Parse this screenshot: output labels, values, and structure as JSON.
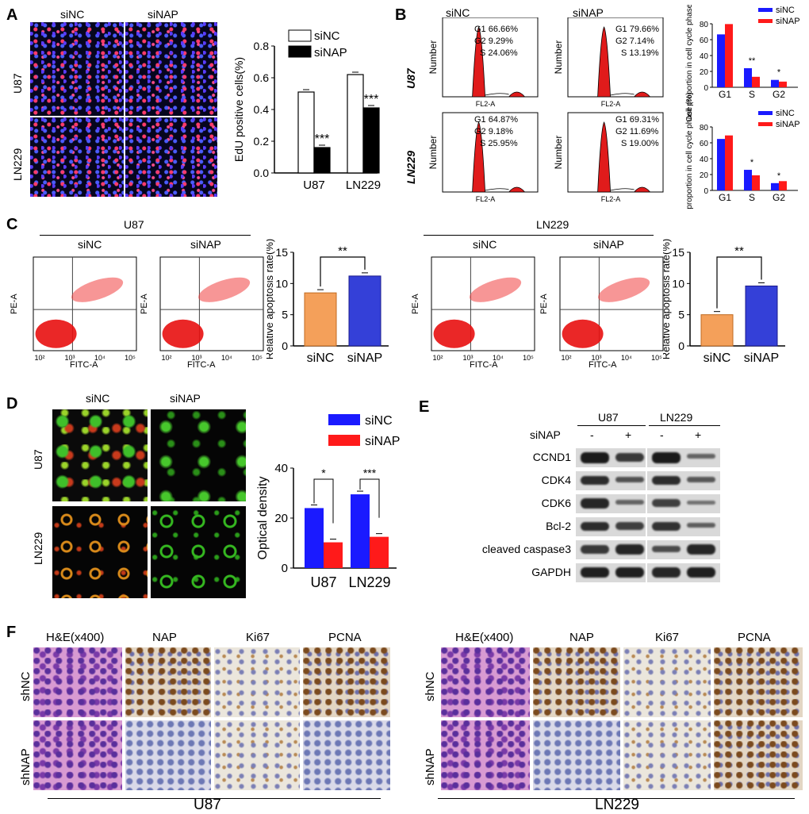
{
  "panels": {
    "a": "A",
    "b": "B",
    "c": "C",
    "d": "D",
    "e": "E",
    "f": "F"
  },
  "panelA": {
    "col_labels": [
      "siNC",
      "siNAP"
    ],
    "row_labels": [
      "U87",
      "LN229"
    ],
    "ylabel": "EdU positive cells(%)",
    "legend": [
      "siNC",
      "siNAP"
    ],
    "sig": [
      "***",
      "***"
    ]
  },
  "panelB": {
    "col_labels": [
      "siNC",
      "siNAP"
    ],
    "row_labels": [
      "U87",
      "LN229"
    ],
    "histo_ylabel": "Number",
    "histo_xlabel": "FL2-A",
    "stats": [
      {
        "G1": "G1  66.66%",
        "G2": "G2  9.29%",
        "S": "S  24.06%"
      },
      {
        "G1": "G1  79.66%",
        "G2": "G2  7.14%",
        "S": "S  13.19%"
      },
      {
        "G1": "G1  64.87%",
        "G2": "G2  9.18%",
        "S": "S  25.95%"
      },
      {
        "G1": "G1  69.31%",
        "G2": "G2  11.69%",
        "S": "S  19.00%"
      }
    ],
    "bar_ylabel": "Cell proportion in cell cycle phase (%)",
    "legend": [
      "siNC",
      "siNAP"
    ]
  },
  "panelC": {
    "groups": [
      "U87",
      "LN229"
    ],
    "col_labels": [
      "siNC",
      "siNAP"
    ],
    "flow_x": "FITC-A",
    "flow_y": "PE-A",
    "ylabel": "Relative apoptosis rate(%)",
    "sig": "**"
  },
  "panelD": {
    "col_labels": [
      "siNC",
      "siNAP"
    ],
    "row_labels": [
      "U87",
      "LN229"
    ],
    "ylabel": "Optical density",
    "legend": [
      "siNC",
      "siNAP"
    ],
    "sig": [
      "*",
      "***"
    ]
  },
  "panelE": {
    "groups": [
      "U87",
      "LN229"
    ],
    "treatment": "siNAP",
    "signs": [
      "-",
      "+",
      "-",
      "+"
    ],
    "proteins": [
      "CCND1",
      "CDK4",
      "CDK6",
      "Bcl-2",
      "cleaved caspase3",
      "GAPDH"
    ]
  },
  "panelF": {
    "col_labels": [
      "H&E(x400)",
      "NAP",
      "Ki67",
      "PCNA"
    ],
    "row_labels": [
      "shNC",
      "shNAP"
    ],
    "groups": [
      "U87",
      "LN229"
    ]
  },
  "chart_data": [
    {
      "type": "bar",
      "panel": "A",
      "categories": [
        "U87",
        "LN229"
      ],
      "series": [
        {
          "name": "siNC",
          "values": [
            0.51,
            0.62
          ]
        },
        {
          "name": "siNAP",
          "values": [
            0.16,
            0.41
          ]
        }
      ],
      "ylabel": "EdU positive cells(%)",
      "ylim": [
        0,
        0.8
      ],
      "yticks": [
        "0.0",
        "0.2",
        "0.4",
        "0.6",
        "0.8"
      ]
    },
    {
      "type": "bar",
      "panel": "B-U87",
      "categories": [
        "G1",
        "S",
        "G2"
      ],
      "series": [
        {
          "name": "siNC",
          "values": [
            66.66,
            24.06,
            9.29
          ]
        },
        {
          "name": "siNAP",
          "values": [
            79.66,
            13.19,
            7.14
          ]
        }
      ],
      "ylabel": "Cell proportion in cell cycle phase (%)",
      "ylim": [
        0,
        80
      ],
      "yticks": [
        "0",
        "20",
        "40",
        "60",
        "80"
      ],
      "sig": [
        "",
        "**",
        "*"
      ]
    },
    {
      "type": "bar",
      "panel": "B-LN229",
      "categories": [
        "G1",
        "S",
        "G2"
      ],
      "series": [
        {
          "name": "siNC",
          "values": [
            64.87,
            25.95,
            9.18
          ]
        },
        {
          "name": "siNAP",
          "values": [
            69.31,
            19.0,
            11.69
          ]
        }
      ],
      "ylabel": "Cell proportion in cell cycle phase (%)",
      "ylim": [
        0,
        80
      ],
      "yticks": [
        "0",
        "20",
        "40",
        "60",
        "80"
      ],
      "sig": [
        "",
        "*",
        "*"
      ]
    },
    {
      "type": "bar",
      "panel": "C-U87",
      "categories": [
        "siNC",
        "siNAP"
      ],
      "values": [
        8.5,
        11.2
      ],
      "ylabel": "Relative apoptosis rate(%)",
      "ylim": [
        0,
        15
      ],
      "yticks": [
        "0",
        "5",
        "10",
        "15"
      ],
      "sig": "**"
    },
    {
      "type": "bar",
      "panel": "C-LN229",
      "categories": [
        "siNC",
        "siNAP"
      ],
      "values": [
        5.0,
        9.6
      ],
      "ylabel": "Relative apoptosis rate(%)",
      "ylim": [
        0,
        15
      ],
      "yticks": [
        "0",
        "5",
        "10",
        "15"
      ],
      "sig": "**"
    },
    {
      "type": "bar",
      "panel": "D",
      "categories": [
        "U87",
        "LN229"
      ],
      "series": [
        {
          "name": "siNC",
          "values": [
            24,
            29.5
          ]
        },
        {
          "name": "siNAP",
          "values": [
            10.3,
            12.5
          ]
        }
      ],
      "ylabel": "Optical density",
      "ylim": [
        0,
        40
      ],
      "yticks": [
        "0",
        "20",
        "40"
      ],
      "sig": [
        "*",
        "***"
      ]
    }
  ]
}
